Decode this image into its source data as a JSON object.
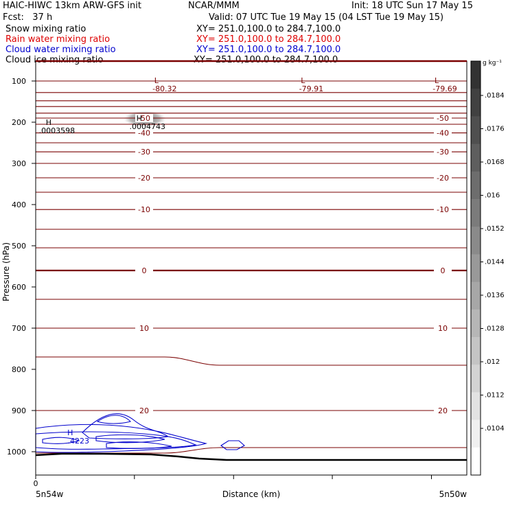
{
  "header": {
    "line1_left": "HAIC-HIWC 13km ARW-GFS init",
    "line1_mid": "NCAR/MMM",
    "line1_right": "Init: 18 UTC Sun 17 May 15",
    "line2_left": "Fcst:   37 h",
    "line2_right": "Valid: 07 UTC Tue 19 May 15 (04 LST Tue 19 May 15)",
    "fields": [
      {
        "name": "Snow mixing ratio",
        "xy": "XY= 251.0,100.0 to 284.7,100.0",
        "color": "#000000"
      },
      {
        "name": "Rain water mixing ratio",
        "xy": "XY= 251.0,100.0 to 284.7,100.0",
        "color": "#dd0000"
      },
      {
        "name": "Cloud water mixing ratio",
        "xy": "XY= 251.0,100.0 to 284.7,100.0",
        "color": "#0000cc"
      },
      {
        "name": "Cloud ice mixing ratio",
        "xy": "XY= 251.0,100.0 to 284.7,100.0",
        "color": "#000000"
      }
    ]
  },
  "chart_data": {
    "type": "contour cross-section",
    "ylabel": "Pressure (hPa)",
    "xlabel": "Distance (km)",
    "x_tick_labels": [
      "0"
    ],
    "x_endpoints": [
      "5n54w",
      "5n50w"
    ],
    "ylim": [
      1050,
      75
    ],
    "y_ticks": [
      100,
      200,
      300,
      400,
      500,
      600,
      700,
      800,
      900,
      1000
    ],
    "colorbar": {
      "unit": "g kg⁻¹",
      "ticks": [
        ".0184",
        ".0176",
        ".0168",
        ".016",
        ".0152",
        ".0144",
        ".0136",
        ".0128",
        ".012",
        ".0112",
        ".0104"
      ]
    },
    "temperature_contours": [
      {
        "p": 100,
        "label": ""
      },
      {
        "p": 128,
        "label": ""
      },
      {
        "p": 148,
        "label": ""
      },
      {
        "p": 162,
        "label": ""
      },
      {
        "p": 178,
        "label": ""
      },
      {
        "p": 190,
        "label": "-50"
      },
      {
        "p": 205,
        "label": ""
      },
      {
        "p": 226,
        "label": "-40"
      },
      {
        "p": 250,
        "label": ""
      },
      {
        "p": 272,
        "label": "-30"
      },
      {
        "p": 300,
        "label": ""
      },
      {
        "p": 335,
        "label": "-20"
      },
      {
        "p": 370,
        "label": ""
      },
      {
        "p": 412,
        "label": "-10"
      },
      {
        "p": 460,
        "label": ""
      },
      {
        "p": 505,
        "label": ""
      },
      {
        "p": 560,
        "label": "0"
      },
      {
        "p": 630,
        "label": ""
      },
      {
        "p": 700,
        "label": "10"
      },
      {
        "p": 790,
        "label": ""
      },
      {
        "p": 900,
        "label": "20"
      },
      {
        "p": 990,
        "label": ""
      }
    ],
    "extrema": [
      {
        "type": "L",
        "value": "-80.32",
        "distance_frac": 0.28,
        "p": 105
      },
      {
        "type": "L",
        "value": "-79.91",
        "distance_frac": 0.62,
        "p": 105
      },
      {
        "type": "L",
        "value": "-79.69",
        "distance_frac": 0.93,
        "p": 105
      },
      {
        "type": "H",
        "value": ".0004743",
        "distance_frac": 0.24,
        "p": 197
      },
      {
        "type": "H",
        "value": ".0003598",
        "distance_frac": 0.03,
        "p": 207
      },
      {
        "type": "H",
        "value": ".4223",
        "distance_frac": 0.08,
        "p": 960
      }
    ]
  }
}
